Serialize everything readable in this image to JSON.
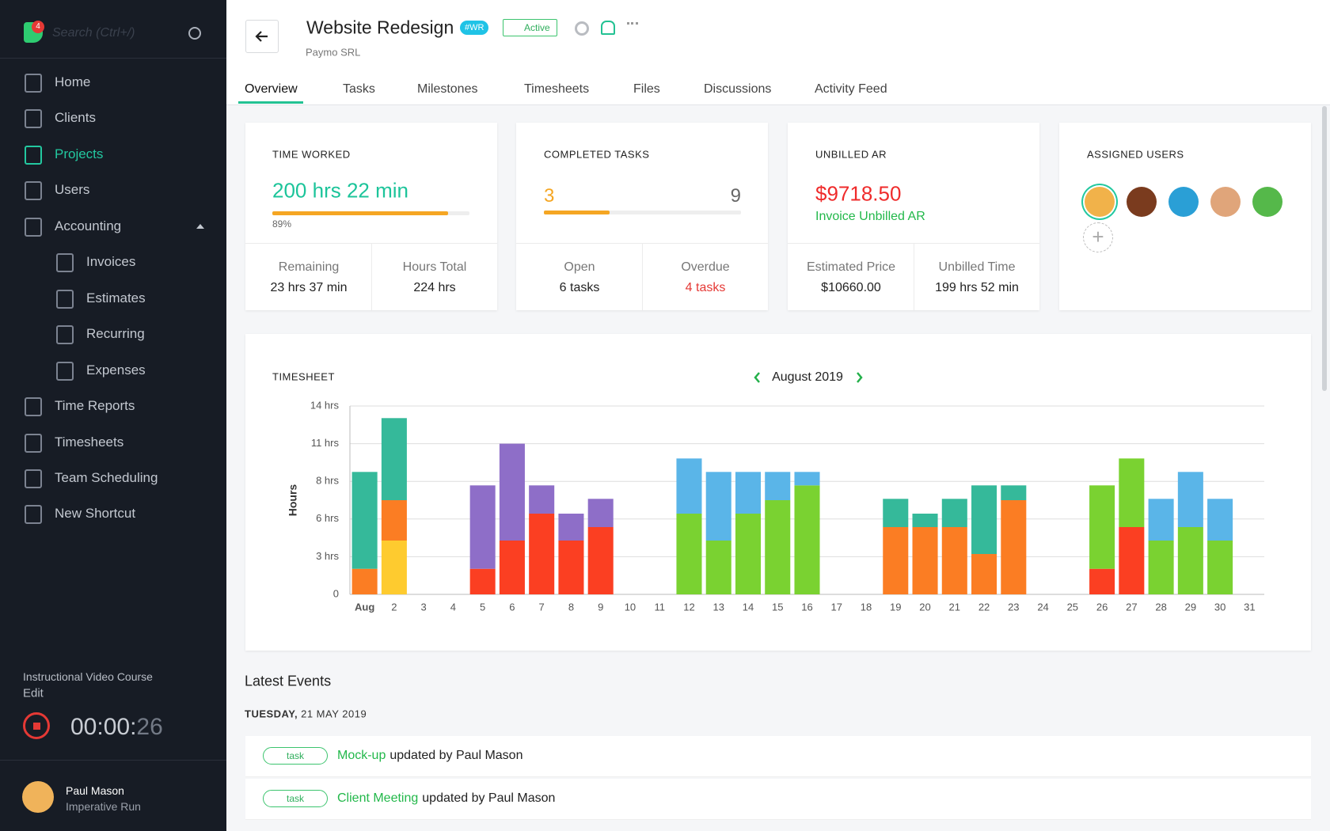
{
  "sidebar": {
    "search": "Search (Ctrl+/)",
    "badge": "4",
    "nav": [
      "Home",
      "Clients",
      "Projects",
      "Users",
      "Accounting"
    ],
    "accounting": [
      "Invoices",
      "Estimates",
      "Recurring",
      "Expenses"
    ],
    "nav2": [
      "Time Reports",
      "Timesheets",
      "Team Scheduling",
      "New Shortcut"
    ],
    "course": "Instructional Video Course",
    "edit": "Edit",
    "timer": "00:00:",
    "timer_seconds": "26",
    "user": {
      "name": "Paul Mason",
      "company": "Imperative Run"
    }
  },
  "header": {
    "title": "Website Redesign",
    "code": "#WR",
    "status": "Active",
    "client": "Paymo SRL"
  },
  "tabs": [
    "Overview",
    "Tasks",
    "Milestones",
    "Timesheets",
    "Files",
    "Discussions",
    "Activity Feed"
  ],
  "cards": {
    "time_worked": {
      "title": "TIME WORKED",
      "value": "200 hrs 22 min",
      "progress": {
        "value": 89,
        "label": "89%"
      },
      "remaining_label": "Remaining",
      "remaining": "23 hrs 37 min",
      "total_label": "Hours Total",
      "total": "224 hrs"
    },
    "completed_tasks": {
      "title": "COMPLETED TASKS",
      "done": 3,
      "total": 9,
      "open_label": "Open",
      "open": "6 tasks",
      "overdue_label": "Overdue",
      "overdue": "4 tasks"
    },
    "unbilled_ar": {
      "title": "UNBILLED AR",
      "value": "$9718.50",
      "link": "Invoice Unbilled AR",
      "price_label": "Estimated Price",
      "price": "$10660.00",
      "time_label": "Unbilled Time",
      "time": "199 hrs 52 min"
    },
    "assigned_users": {
      "title": "ASSIGNED USERS"
    }
  },
  "chart_data": {
    "type": "bar",
    "stacked": true,
    "title": "TIMESHEET",
    "period": "August 2019",
    "y_label": "Hours",
    "grid": true,
    "categories": [
      "Aug",
      "2",
      "3",
      "4",
      "5",
      "6",
      "7",
      "8",
      "9",
      "10",
      "11",
      "12",
      "13",
      "14",
      "15",
      "16",
      "17",
      "18",
      "19",
      "20",
      "21",
      "22",
      "23",
      "24",
      "25",
      "26",
      "27",
      "28",
      "29",
      "30",
      "31"
    ],
    "ylim": [
      0,
      14
    ],
    "yticks": [
      0,
      {
        "value": 2.8,
        "label": "3 hrs"
      },
      {
        "value": 5.6,
        "label": "6 hrs"
      },
      {
        "value": 8.4,
        "label": "8 hrs"
      },
      {
        "value": 11.2,
        "label": "11 hrs"
      },
      {
        "value": 14,
        "label": "14 hrs"
      }
    ],
    "series": [
      {
        "color": "#fecb2f",
        "values": [
          null,
          4.0,
          null,
          null,
          null,
          null,
          null,
          null,
          null,
          null,
          null,
          null,
          null,
          null,
          null,
          null,
          null,
          null,
          null,
          null,
          null,
          null,
          null,
          null,
          null,
          null,
          null,
          null,
          null,
          null,
          null
        ]
      },
      {
        "color": "#fb7d23",
        "values": [
          1.9,
          3.0,
          null,
          null,
          null,
          null,
          null,
          null,
          null,
          null,
          null,
          null,
          null,
          null,
          null,
          null,
          null,
          null,
          5.0,
          5.0,
          5.0,
          3.0,
          7.0,
          null,
          null,
          null,
          null,
          null,
          null,
          null,
          null
        ]
      },
      {
        "color": "#35b99a",
        "values": [
          7.2,
          6.1,
          null,
          null,
          null,
          null,
          null,
          null,
          null,
          null,
          null,
          null,
          null,
          null,
          null,
          null,
          null,
          null,
          2.1,
          1.0,
          2.1,
          5.1,
          1.1,
          null,
          null,
          null,
          null,
          null,
          null,
          null,
          null
        ]
      },
      {
        "color": "#fb3f22",
        "values": [
          null,
          null,
          null,
          null,
          1.9,
          4.0,
          6.0,
          4.0,
          5.0,
          null,
          null,
          null,
          null,
          null,
          null,
          null,
          null,
          null,
          null,
          null,
          null,
          null,
          null,
          null,
          null,
          1.9,
          5.0,
          null,
          null,
          null,
          null
        ]
      },
      {
        "color": "#8e6ec8",
        "values": [
          null,
          null,
          null,
          null,
          6.2,
          7.2,
          2.1,
          2.0,
          2.1,
          null,
          null,
          null,
          null,
          null,
          null,
          null,
          null,
          null,
          null,
          null,
          null,
          null,
          null,
          null,
          null,
          null,
          null,
          null,
          null,
          null,
          null
        ]
      },
      {
        "color": "#7ad231",
        "values": [
          null,
          null,
          null,
          null,
          null,
          null,
          null,
          null,
          null,
          null,
          null,
          6.0,
          4.0,
          6.0,
          7.0,
          8.1,
          null,
          null,
          null,
          null,
          null,
          null,
          null,
          null,
          null,
          6.2,
          5.1,
          4.0,
          5.0,
          4.0,
          null
        ]
      },
      {
        "color": "#5ab5e8",
        "values": [
          null,
          null,
          null,
          null,
          null,
          null,
          null,
          null,
          null,
          null,
          null,
          4.1,
          5.1,
          3.1,
          2.1,
          1.0,
          null,
          null,
          null,
          null,
          null,
          null,
          null,
          null,
          null,
          null,
          null,
          3.1,
          4.1,
          3.1,
          null
        ]
      }
    ]
  },
  "events": {
    "title": "Latest Events",
    "date_day": "TUESDAY,",
    "date": "21 MAY 2019",
    "items": [
      {
        "tag": "task",
        "link": "Mock-up",
        "text": "updated by Paul Mason"
      },
      {
        "tag": "task",
        "link": "Client Meeting",
        "text": "updated by Paul Mason"
      }
    ]
  }
}
